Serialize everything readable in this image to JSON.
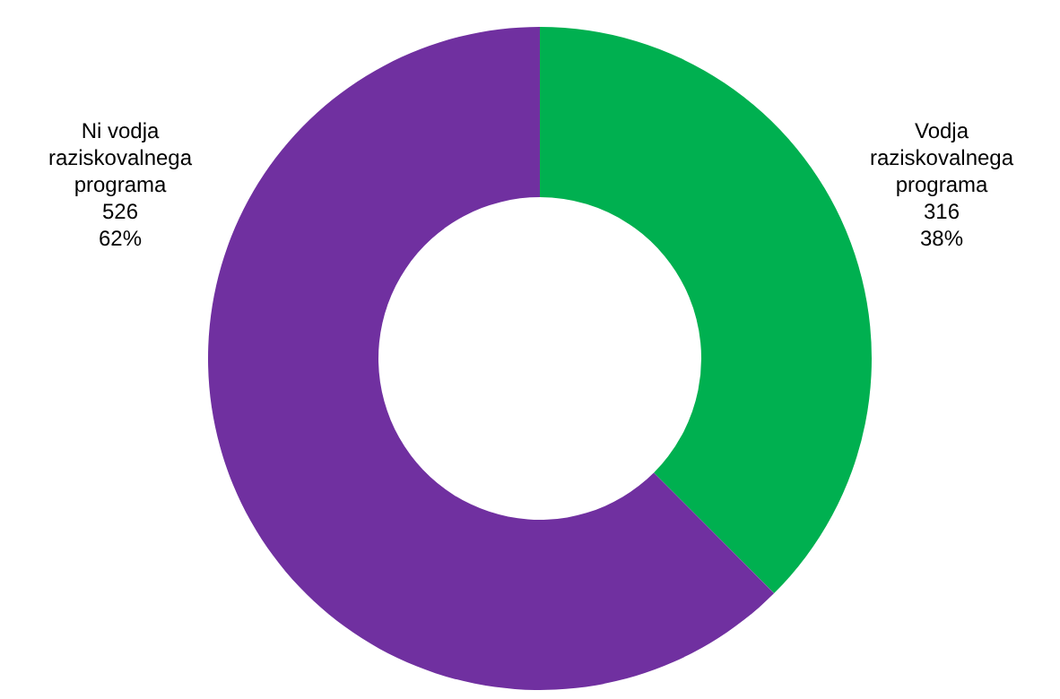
{
  "chart_data": {
    "type": "donut",
    "categories": [
      "Vodja raziskovalnega programa",
      "Ni vodja raziskovalnega programa"
    ],
    "values": [
      316,
      526
    ],
    "colors": [
      "#00b050",
      "#7030a0"
    ],
    "value_labels": [
      "316\n38%",
      "526\n62%"
    ],
    "legend": false
  }
}
